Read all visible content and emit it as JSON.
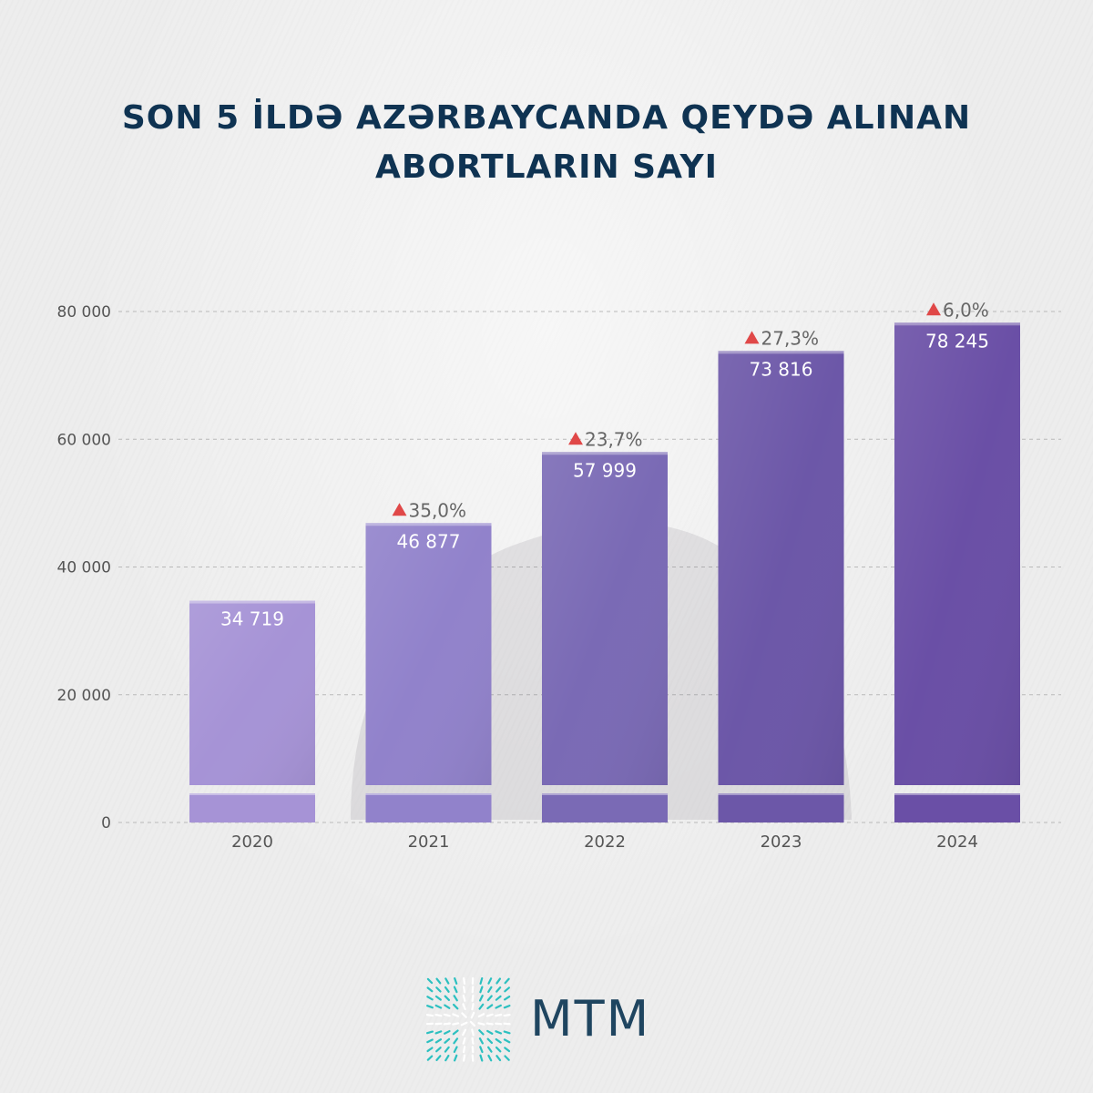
{
  "title": {
    "line1": "SON 5 İLDƏ AZƏRBAYCANDA QEYDƏ ALINAN",
    "line2": "ABORTLARIN SAYI"
  },
  "chart_data": {
    "type": "bar",
    "categories": [
      "2020",
      "2021",
      "2022",
      "2023",
      "2024"
    ],
    "values": [
      34719,
      46877,
      57999,
      73816,
      78245
    ],
    "value_labels": [
      "34 719",
      "46 877",
      "57 999",
      "73 816",
      "78 245"
    ],
    "growth_labels": [
      "",
      "35,0%",
      "23,7%",
      "27,3%",
      "6,0%"
    ],
    "growth_icon": "triangle-up-icon",
    "yticks": [
      0,
      20000,
      40000,
      60000,
      80000
    ],
    "ytick_labels": [
      "0",
      "20 000",
      "40 000",
      "60 000",
      "80 000"
    ],
    "ylim": [
      0,
      80000
    ],
    "axis_break": true,
    "grid": "dashed horizontal",
    "colors": {
      "bar_top": [
        "#a693d6",
        "#9182cb",
        "#7a6ab5",
        "#6c57a8",
        "#6a4fa6"
      ],
      "growth_arrow": "#e04848",
      "title": "#0f3352",
      "tick": "#555555"
    }
  },
  "logo": {
    "text": "MTM",
    "icon": "mtm-logo-icon",
    "color": "#1f4560",
    "accent": "#2cc0c0"
  }
}
